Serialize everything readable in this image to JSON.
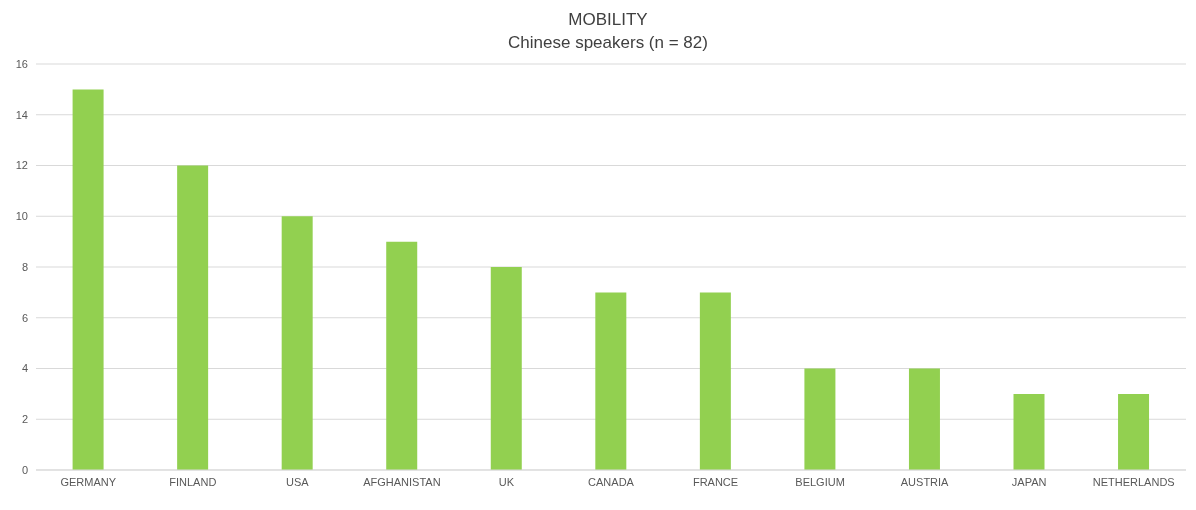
{
  "chart_data": {
    "type": "bar",
    "title": "MOBILITY",
    "subtitle": "Chinese speakers (n = 82)",
    "categories": [
      "GERMANY",
      "FINLAND",
      "USA",
      "AFGHANISTAN",
      "UK",
      "CANADA",
      "FRANCE",
      "BELGIUM",
      "AUSTRIA",
      "JAPAN",
      "NETHERLANDS"
    ],
    "values": [
      15,
      12,
      10,
      9,
      8,
      7,
      7,
      4,
      4,
      3,
      3
    ],
    "color": "#92d050",
    "ylim": [
      0,
      16
    ],
    "yticks": [
      0,
      2,
      4,
      6,
      8,
      10,
      12,
      14,
      16
    ],
    "grid": "y"
  }
}
